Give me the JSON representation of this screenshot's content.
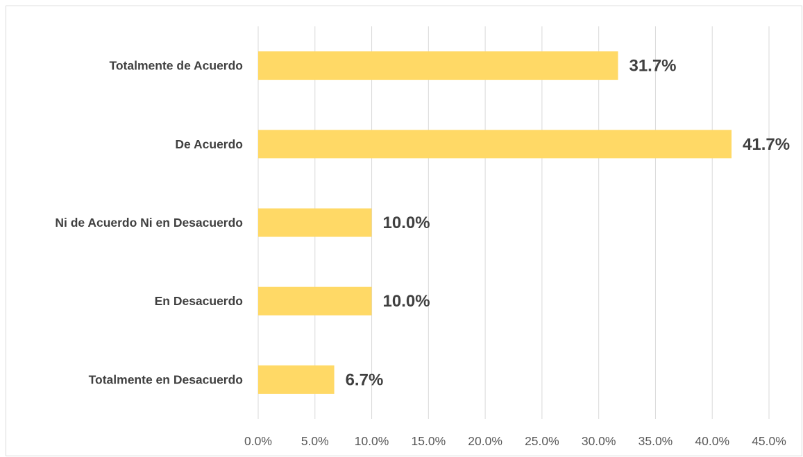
{
  "chart_data": {
    "type": "bar",
    "orientation": "horizontal",
    "categories": [
      "Totalmente de Acuerdo",
      "De Acuerdo",
      "Ni de Acuerdo Ni en Desacuerdo",
      "En Desacuerdo",
      "Totalmente en Desacuerdo"
    ],
    "values": [
      31.7,
      41.7,
      10.0,
      10.0,
      6.7
    ],
    "data_labels": [
      "31.7%",
      "41.7%",
      "10.0%",
      "10.0%",
      "6.7%"
    ],
    "x_ticks": [
      "0.0%",
      "5.0%",
      "10.0%",
      "15.0%",
      "20.0%",
      "25.0%",
      "30.0%",
      "35.0%",
      "40.0%",
      "45.0%"
    ],
    "xlim": [
      0,
      45
    ],
    "title": "",
    "xlabel": "",
    "ylabel": "",
    "grid": "vertical",
    "legend": "none",
    "colors": {
      "bar": "#FFD966",
      "grid": "#d9d9d9",
      "text": "#404040",
      "tick": "#595959"
    }
  }
}
